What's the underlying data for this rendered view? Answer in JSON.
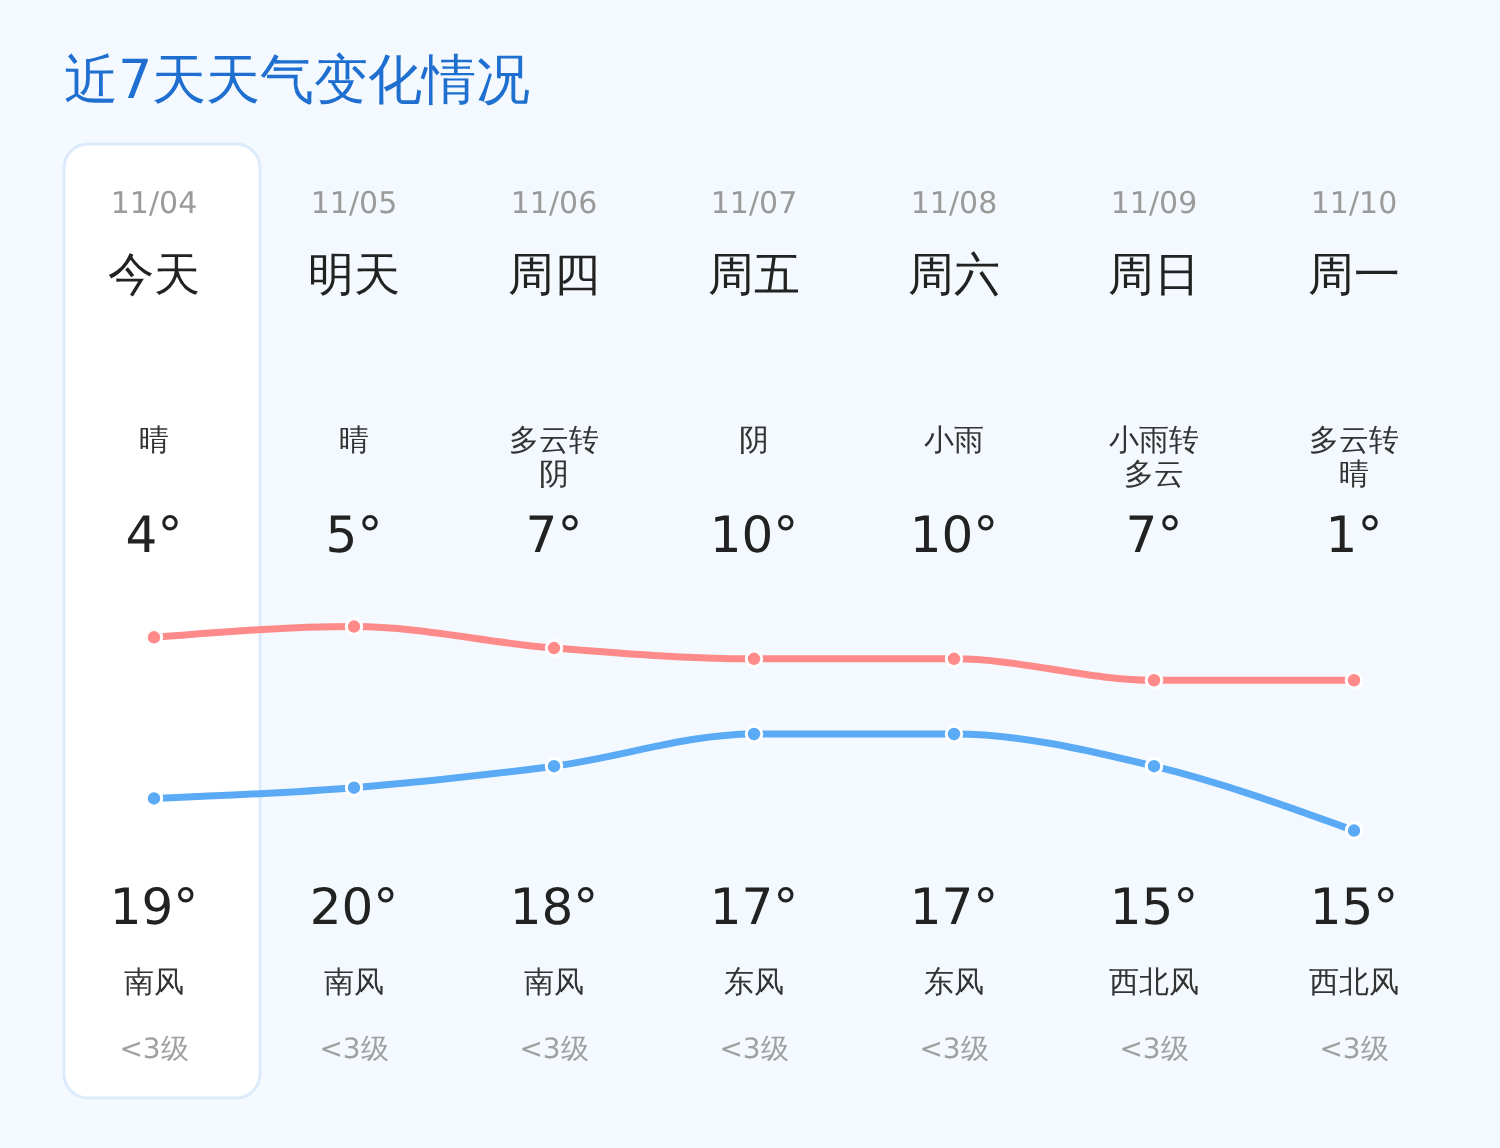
{
  "chart_data": {
    "type": "line",
    "title": "近7天天气变化情况",
    "categories": [
      "11/04",
      "11/05",
      "11/06",
      "11/07",
      "11/08",
      "11/09",
      "11/10"
    ],
    "series": [
      {
        "color": "#5aaaf6",
        "values": [
          4,
          5,
          7,
          10,
          10,
          7,
          1
        ],
        "value_labels": [
          "4°",
          "5°",
          "7°",
          "10°",
          "10°",
          "7°",
          "1°"
        ]
      },
      {
        "color": "#ff8a8a",
        "values": [
          19,
          20,
          18,
          17,
          17,
          15,
          15
        ],
        "value_labels": [
          "19°",
          "20°",
          "18°",
          "17°",
          "17°",
          "15°",
          "15°"
        ]
      }
    ],
    "marker": "circle",
    "bands": [
      {
        "axis": "x",
        "from": "11/04",
        "to": "11/04",
        "color": "#ffffff"
      }
    ],
    "annotations": [
      "今天",
      "明天",
      "周四",
      "周五",
      "周六",
      "周日",
      "周一",
      "晴",
      "晴",
      "多云转阴",
      "阴",
      "小雨",
      "小雨转多云",
      "多云转晴",
      "南风",
      "南风",
      "南风",
      "东风",
      "东风",
      "西北风",
      "西北风",
      "<3级",
      "<3级",
      "<3级",
      "<3级",
      "<3级",
      "<3级",
      "<3级"
    ]
  }
}
